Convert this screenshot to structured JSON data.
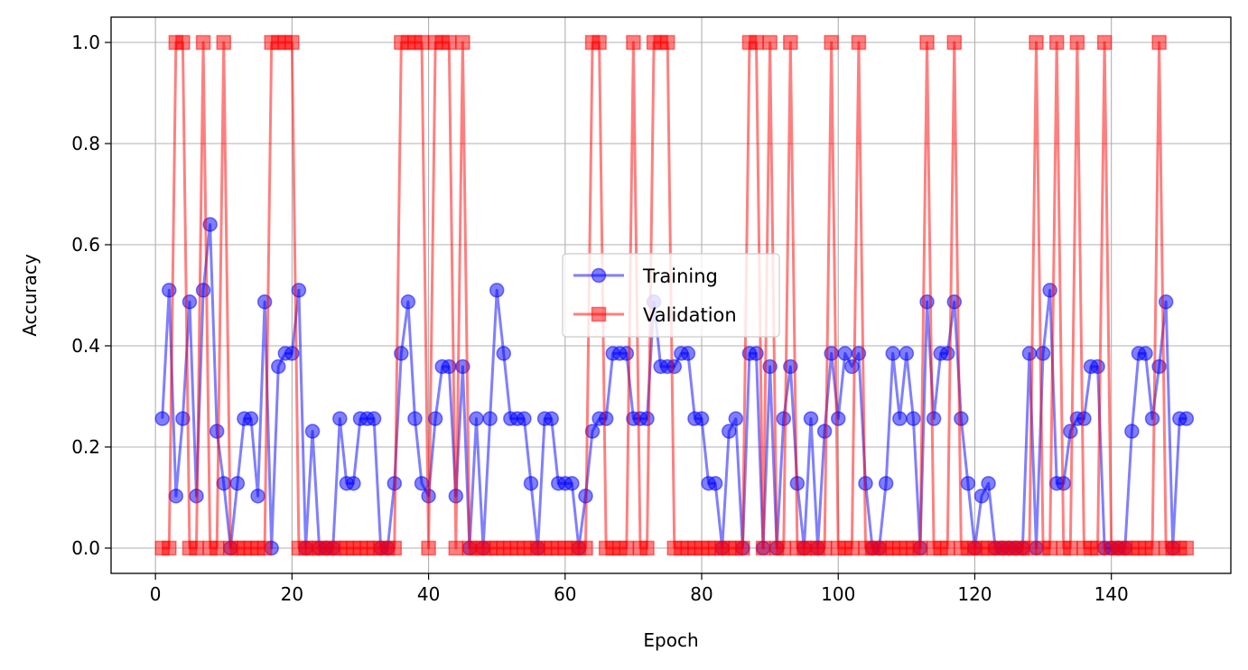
{
  "chart_data": {
    "type": "line",
    "xlabel": "Epoch",
    "ylabel": "Accuracy",
    "xlim": [
      -6.5,
      157.5
    ],
    "ylim": [
      -0.05,
      1.05
    ],
    "xticks": [
      0,
      20,
      40,
      60,
      80,
      100,
      120,
      140
    ],
    "yticks": [
      0.0,
      0.2,
      0.4,
      0.6,
      0.8,
      1.0
    ],
    "xtick_labels": [
      "0",
      "20",
      "40",
      "60",
      "80",
      "100",
      "120",
      "140"
    ],
    "ytick_labels": [
      "0.0",
      "0.2",
      "0.4",
      "0.6",
      "0.8",
      "1.0"
    ],
    "grid": true,
    "legend_position": "center",
    "x": [
      1,
      2,
      3,
      4,
      5,
      6,
      7,
      8,
      9,
      10,
      11,
      12,
      13,
      14,
      15,
      16,
      17,
      18,
      19,
      20,
      21,
      22,
      23,
      24,
      25,
      26,
      27,
      28,
      29,
      30,
      31,
      32,
      33,
      34,
      35,
      36,
      37,
      38,
      39,
      40,
      41,
      42,
      43,
      44,
      45,
      46,
      47,
      48,
      49,
      50,
      51,
      52,
      53,
      54,
      55,
      56,
      57,
      58,
      59,
      60,
      61,
      62,
      63,
      64,
      65,
      66,
      67,
      68,
      69,
      70,
      71,
      72,
      73,
      74,
      75,
      76,
      77,
      78,
      79,
      80,
      81,
      82,
      83,
      84,
      85,
      86,
      87,
      88,
      89,
      90,
      91,
      92,
      93,
      94,
      95,
      96,
      97,
      98,
      99,
      100,
      101,
      102,
      103,
      104,
      105,
      106,
      107,
      108,
      109,
      110,
      111,
      112,
      113,
      114,
      115,
      116,
      117,
      118,
      119,
      120,
      121,
      122,
      123,
      124,
      125,
      126,
      127,
      128,
      129,
      130,
      131,
      132,
      133,
      134,
      135,
      136,
      137,
      138,
      139,
      140,
      141,
      142,
      143,
      144,
      145,
      146,
      147,
      148,
      149,
      150,
      151
    ],
    "series": [
      {
        "name": "Training",
        "color": "#0000ff",
        "marker": "circle",
        "values": [
          0.256,
          0.51,
          0.103,
          0.256,
          0.487,
          0.103,
          0.51,
          0.64,
          0.231,
          0.128,
          0,
          0.128,
          0.256,
          0.256,
          0.103,
          0.487,
          0,
          0.359,
          0.385,
          0.385,
          0.51,
          0,
          0.231,
          0,
          0,
          0,
          0.256,
          0.128,
          0.128,
          0.256,
          0.256,
          0.256,
          0,
          0,
          0.128,
          0.385,
          0.487,
          0.256,
          0.128,
          0.103,
          0.256,
          0.359,
          0.359,
          0.103,
          0.359,
          0,
          0.256,
          0,
          0.256,
          0.51,
          0.385,
          0.256,
          0.256,
          0.256,
          0.128,
          0,
          0.256,
          0.256,
          0.128,
          0.128,
          0.128,
          0,
          0.103,
          0.231,
          0.256,
          0.256,
          0.385,
          0.385,
          0.385,
          0.256,
          0.256,
          0.256,
          0.487,
          0.359,
          0.359,
          0.359,
          0.385,
          0.385,
          0.256,
          0.256,
          0.128,
          0.128,
          0,
          0.231,
          0.256,
          0,
          0.385,
          0.385,
          0,
          0.359,
          0,
          0.256,
          0.359,
          0.128,
          0,
          0.256,
          0,
          0.231,
          0.385,
          0.256,
          0.385,
          0.359,
          0.385,
          0.128,
          0,
          0,
          0.128,
          0.385,
          0.256,
          0.385,
          0.256,
          0,
          0.487,
          0.256,
          0.385,
          0.385,
          0.487,
          0.256,
          0.128,
          0,
          0.103,
          0.128,
          0,
          0,
          0,
          0,
          0,
          0.385,
          0,
          0.385,
          0.51,
          0.128,
          0.128,
          0.231,
          0.256,
          0.256,
          0.359,
          0.359,
          0,
          0,
          0,
          0,
          0.231,
          0.385,
          0.385,
          0.256,
          0.359,
          0.487,
          0,
          0.256,
          0.256
        ]
      },
      {
        "name": "Validation",
        "color": "#ff0000",
        "marker": "square",
        "values": [
          0,
          0,
          1,
          1,
          0,
          0,
          1,
          0,
          0,
          1,
          0,
          0,
          0,
          0,
          0,
          0,
          1,
          1,
          1,
          1,
          0,
          0,
          0,
          0,
          0,
          0,
          0,
          0,
          0,
          0,
          0,
          0,
          0,
          0,
          0,
          1,
          1,
          1,
          1,
          0,
          1,
          1,
          1,
          0,
          1,
          0,
          0,
          0,
          0,
          0,
          0,
          0,
          0,
          0,
          0,
          0,
          0,
          0,
          0,
          0,
          0,
          0,
          0,
          1,
          1,
          0,
          0,
          0,
          0,
          1,
          0,
          0,
          1,
          1,
          1,
          0,
          0,
          0,
          0,
          0,
          0,
          0,
          0,
          0,
          0,
          0,
          1,
          1,
          0,
          1,
          0,
          0,
          1,
          0,
          0,
          0,
          0,
          0,
          1,
          0,
          0,
          0,
          1,
          0,
          0,
          0,
          0,
          0,
          0,
          0,
          0,
          0,
          1,
          0,
          0,
          0,
          1,
          0,
          0,
          0,
          0,
          0,
          0,
          0,
          0,
          0,
          0,
          0,
          1,
          0,
          0,
          1,
          0,
          0,
          1,
          0,
          0,
          0,
          1,
          0,
          0,
          0,
          0,
          0,
          0,
          0,
          1,
          0,
          0,
          0,
          0
        ]
      }
    ]
  }
}
